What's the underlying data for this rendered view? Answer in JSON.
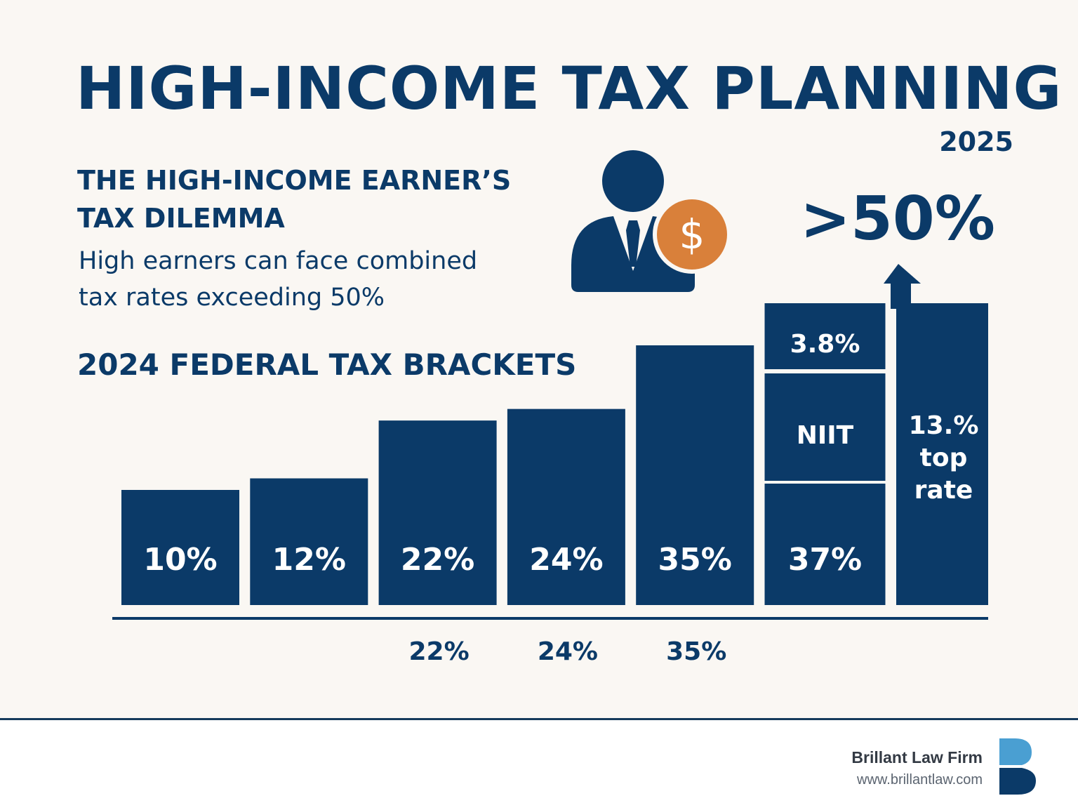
{
  "title": "HIGH-INCOME TAX PLANNING",
  "year": "2025",
  "dilemma": {
    "heading_lines": [
      "THE HIGH-INCOME EARNER’S",
      "TAX DILEMMA"
    ],
    "body_lines": [
      "High earners can face combined",
      "tax rates exceeding 50%"
    ]
  },
  "callout": ">50%",
  "icons": {
    "person": "businessperson-icon",
    "dollar": "dollar-coin-icon",
    "arrow": "arrow-up-icon",
    "logo": "brillant-b-logo"
  },
  "colors": {
    "navy": "#0b3a68",
    "accent_orange": "#d9803a",
    "background": "#faf7f3",
    "logo_light": "#4a9fd2"
  },
  "chart_data": {
    "type": "bar",
    "title": "2024 FEDERAL TAX BRACKETS",
    "categories": [
      "10%",
      "12%",
      "22%",
      "24%",
      "35%",
      "37%"
    ],
    "values": [
      10,
      12,
      22,
      24,
      35,
      37
    ],
    "stacked_extra": {
      "base_category": "37%",
      "segments": [
        {
          "label": "NIIT",
          "value": 3.8,
          "value_label": "3.8%"
        }
      ]
    },
    "extra_bar": {
      "label_lines": [
        "13.%",
        "top",
        "rate"
      ],
      "arrow": true
    },
    "below_axis_labels": [
      "22%",
      "24%",
      "35%"
    ],
    "xlabel": "",
    "ylabel": ""
  },
  "footer": {
    "brand": "Brillant Law Firm",
    "url": "www.brillantlaw.com"
  }
}
